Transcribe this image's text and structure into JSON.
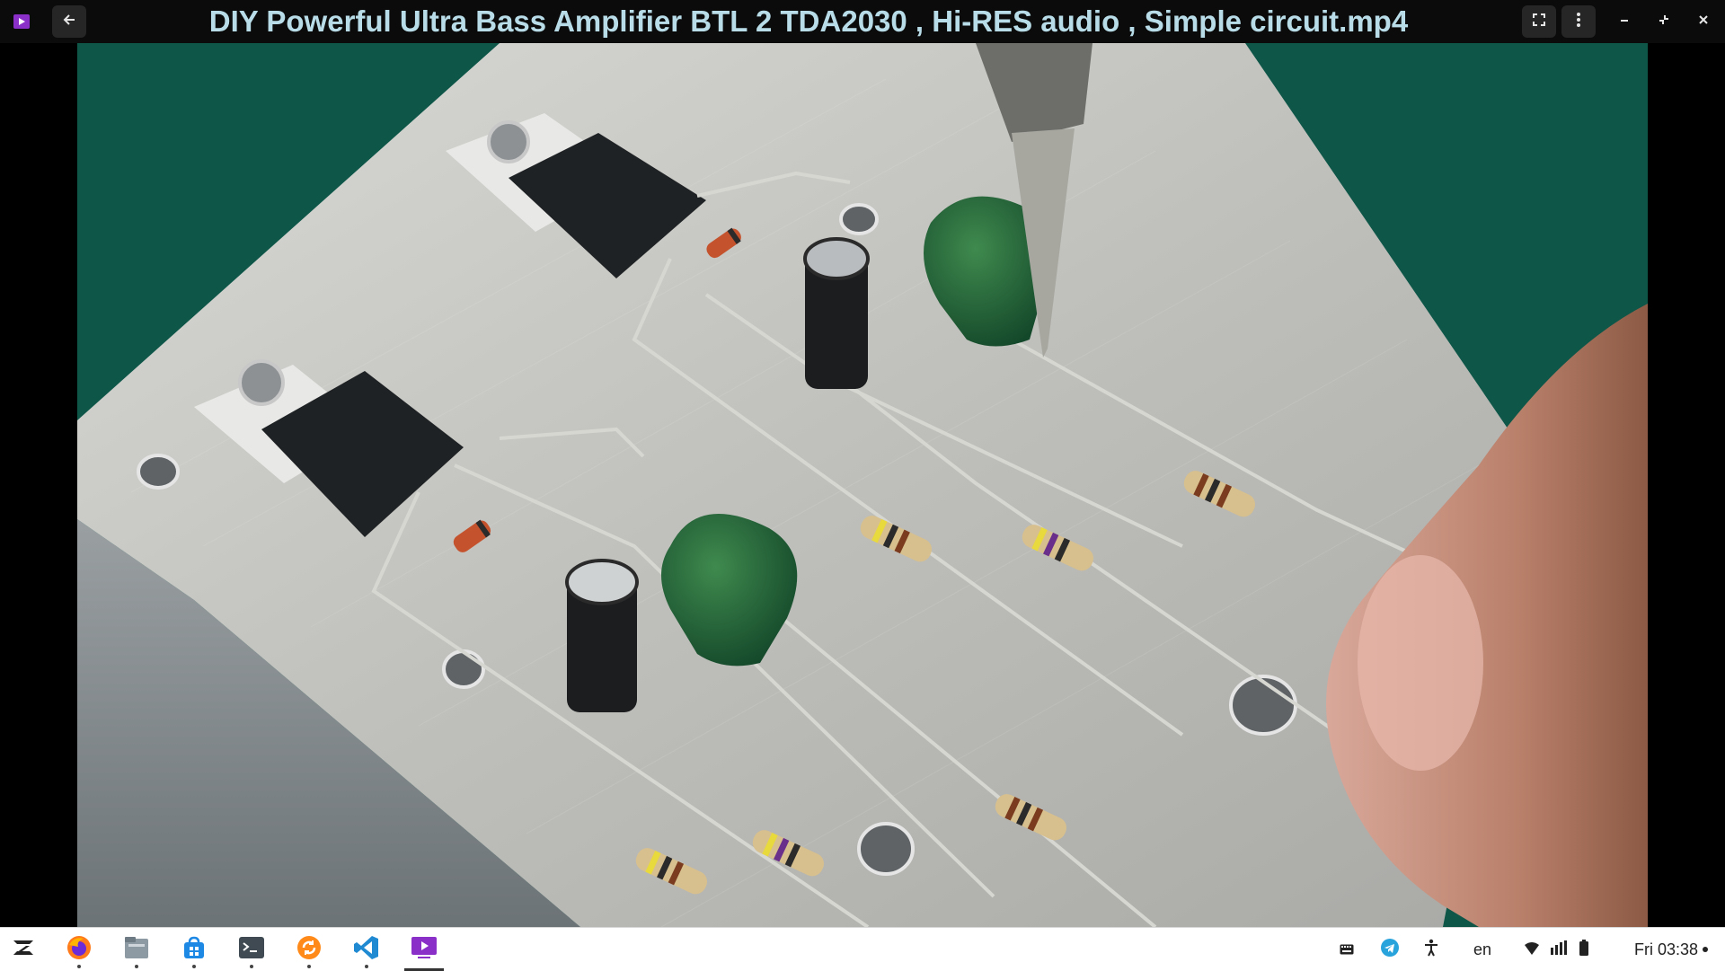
{
  "window": {
    "title": "DIY Powerful Ultra Bass Amplifier BTL 2 TDA2030 , Hi-RES audio , Simple circuit.mp4",
    "app_icon": "video-player-icon",
    "back_icon": "arrow-left-icon",
    "fullscreen_icon": "fullscreen-icon",
    "menu_icon": "kebab-menu-icon",
    "minimize_icon": "minimize-icon",
    "restore_icon": "restore-icon",
    "close_icon": "close-icon"
  },
  "taskbar": {
    "launcher_icon": "zorin-launcher-icon",
    "apps": [
      {
        "name": "firefox-icon",
        "running": true
      },
      {
        "name": "files-icon",
        "running": true
      },
      {
        "name": "software-store-icon",
        "running": true
      },
      {
        "name": "terminal-icon",
        "running": true
      },
      {
        "name": "updater-icon",
        "running": true
      },
      {
        "name": "vscode-icon",
        "running": true
      },
      {
        "name": "video-player-icon",
        "running": true,
        "active": true
      }
    ],
    "tray": {
      "keyboard_icon": "keyboard-icon",
      "telegram_icon": "telegram-icon",
      "accessibility_icon": "accessibility-icon",
      "language": "en",
      "wifi_icon": "wifi-icon",
      "volume_icon": "volume-icon",
      "battery_icon": "battery-icon",
      "clock": "Fri 03:38"
    }
  },
  "colors": {
    "titlebar_bg": "#0b0b0b",
    "title_text": "#b9dde8",
    "video_bg": "#0f5b4d",
    "taskbar_bg": "#ffffff",
    "accent_purple": "#8b2fc9"
  }
}
